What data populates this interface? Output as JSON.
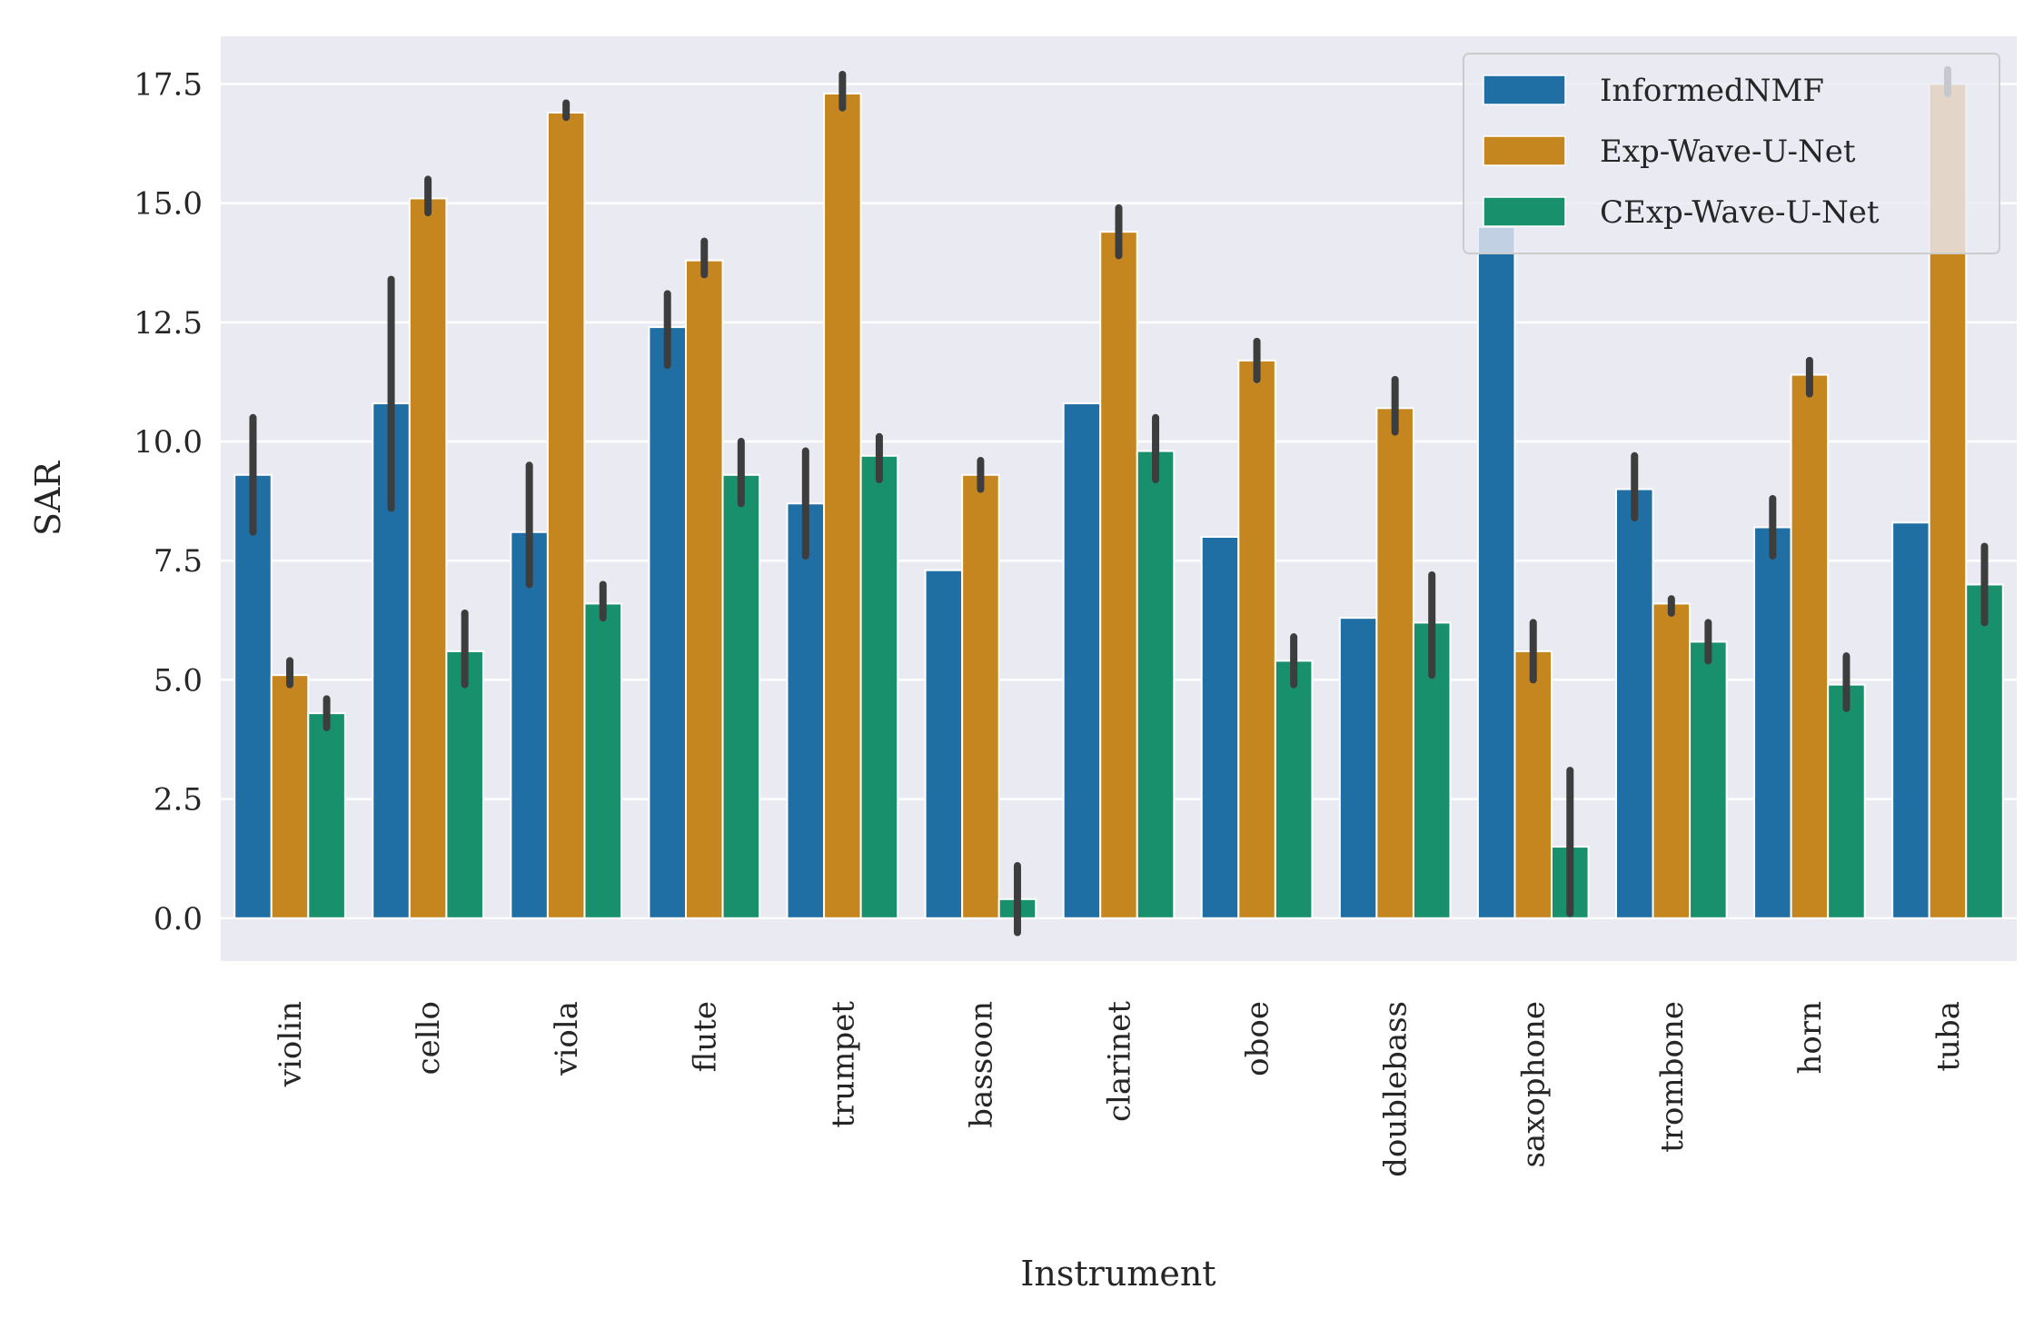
{
  "chart_data": {
    "type": "bar",
    "xlabel": "Instrument",
    "ylabel": "SAR",
    "ylim": [
      -0.9,
      18.5
    ],
    "yticks": [
      0.0,
      2.5,
      5.0,
      7.5,
      10.0,
      12.5,
      15.0,
      17.5
    ],
    "ytick_labels": [
      "0.0",
      "2.5",
      "5.0",
      "7.5",
      "10.0",
      "12.5",
      "15.0",
      "17.5"
    ],
    "grid": true,
    "legend_position": "top-right",
    "categories": [
      "violin",
      "cello",
      "viola",
      "flute",
      "trumpet",
      "bassoon",
      "clarinet",
      "oboe",
      "doublebass",
      "saxophone",
      "trombone",
      "horn",
      "tuba"
    ],
    "series": [
      {
        "name": "InformedNMF",
        "color": "#1f6fa5",
        "values": [
          9.3,
          10.8,
          8.1,
          12.4,
          8.7,
          7.3,
          10.8,
          8.0,
          6.3,
          14.5,
          9.0,
          8.2,
          8.3
        ],
        "err_low": [
          8.1,
          8.6,
          7.0,
          11.6,
          7.6,
          null,
          null,
          null,
          null,
          null,
          8.4,
          7.6,
          null
        ],
        "err_high": [
          10.5,
          13.4,
          9.5,
          13.1,
          9.8,
          null,
          null,
          null,
          null,
          null,
          9.7,
          8.8,
          null
        ]
      },
      {
        "name": "Exp-Wave-U-Net",
        "color": "#c6861f",
        "values": [
          5.1,
          15.1,
          16.9,
          13.8,
          17.3,
          9.3,
          14.4,
          11.7,
          10.7,
          5.6,
          6.6,
          11.4,
          17.5
        ],
        "err_low": [
          4.9,
          14.8,
          16.8,
          13.5,
          17.0,
          9.0,
          13.9,
          11.3,
          10.2,
          5.0,
          6.4,
          11.0,
          17.3
        ],
        "err_high": [
          5.4,
          15.5,
          17.1,
          14.2,
          17.7,
          9.6,
          14.9,
          12.1,
          11.3,
          6.2,
          6.7,
          11.7,
          17.8
        ]
      },
      {
        "name": "CExp-Wave-U-Net",
        "color": "#17906b",
        "values": [
          4.3,
          5.6,
          6.6,
          9.3,
          9.7,
          0.4,
          9.8,
          5.4,
          6.2,
          1.5,
          5.8,
          4.9,
          7.0
        ],
        "err_low": [
          4.0,
          4.9,
          6.3,
          8.7,
          9.2,
          -0.3,
          9.2,
          4.9,
          5.1,
          0.1,
          5.4,
          4.4,
          6.2
        ],
        "err_high": [
          4.6,
          6.4,
          7.0,
          10.0,
          10.1,
          1.1,
          10.5,
          5.9,
          7.2,
          3.1,
          6.2,
          5.5,
          7.8
        ]
      }
    ]
  }
}
